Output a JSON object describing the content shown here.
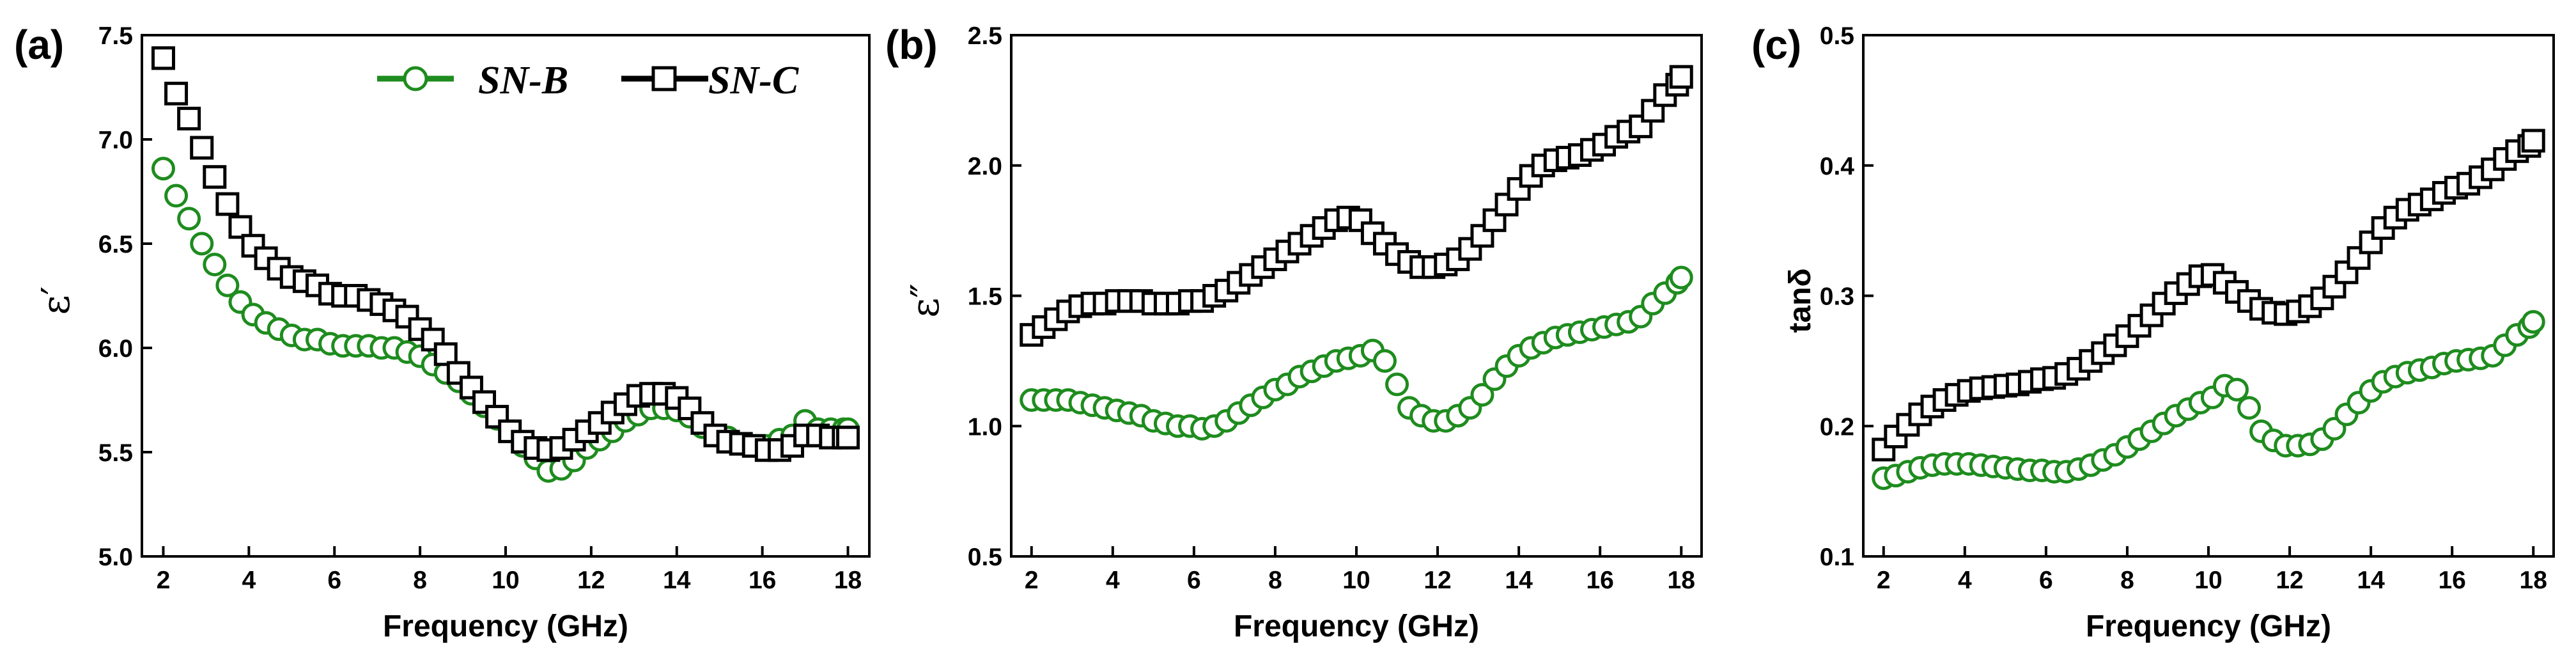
{
  "colors": {
    "sn_b": "#1e8c1e",
    "sn_c": "#000000"
  },
  "legend": {
    "sn_b": "SN-B",
    "sn_c": "SN-C"
  },
  "chart_data": [
    {
      "type": "scatter",
      "panel_label": "(a)",
      "title": "",
      "xlabel": "Frequency (GHz)",
      "ylabel": "ε′",
      "xlim": [
        1.5,
        18.5
      ],
      "ylim": [
        5.0,
        7.5
      ],
      "xticks": [
        2,
        4,
        6,
        8,
        10,
        12,
        14,
        16,
        18
      ],
      "yticks": [
        5.0,
        5.5,
        6.0,
        6.5,
        7.0,
        7.5
      ],
      "ytick_labels": [
        "5.0",
        "5.5",
        "6.0",
        "6.5",
        "7.0",
        "7.5"
      ],
      "legend_position": "top-right",
      "series": [
        {
          "name": "SN-B",
          "marker": "circle",
          "x": [
            2.0,
            2.3,
            2.6,
            2.9,
            3.2,
            3.5,
            3.8,
            4.1,
            4.4,
            4.7,
            5.0,
            5.3,
            5.6,
            5.9,
            6.2,
            6.5,
            6.8,
            7.1,
            7.4,
            7.7,
            8.0,
            8.3,
            8.6,
            8.9,
            9.2,
            9.5,
            9.8,
            10.1,
            10.4,
            10.7,
            11.0,
            11.3,
            11.6,
            11.9,
            12.2,
            12.5,
            12.8,
            13.1,
            13.4,
            13.7,
            14.0,
            14.3,
            14.6,
            14.9,
            15.2,
            15.5,
            15.8,
            16.1,
            16.4,
            16.7,
            17.0,
            17.3,
            17.6,
            17.9,
            18.0
          ],
          "y": [
            6.86,
            6.73,
            6.62,
            6.5,
            6.4,
            6.3,
            6.22,
            6.16,
            6.12,
            6.09,
            6.06,
            6.04,
            6.04,
            6.02,
            6.01,
            6.01,
            6.01,
            6.0,
            6.0,
            5.98,
            5.96,
            5.92,
            5.88,
            5.84,
            5.78,
            5.72,
            5.66,
            5.6,
            5.53,
            5.47,
            5.41,
            5.42,
            5.46,
            5.52,
            5.56,
            5.6,
            5.65,
            5.68,
            5.71,
            5.71,
            5.7,
            5.67,
            5.62,
            5.58,
            5.57,
            5.54,
            5.53,
            5.53,
            5.56,
            5.58,
            5.65,
            5.61,
            5.61,
            5.61,
            5.61
          ]
        },
        {
          "name": "SN-C",
          "marker": "square",
          "x": [
            2.0,
            2.3,
            2.6,
            2.9,
            3.2,
            3.5,
            3.8,
            4.1,
            4.4,
            4.7,
            5.0,
            5.3,
            5.6,
            5.9,
            6.2,
            6.5,
            6.8,
            7.1,
            7.4,
            7.7,
            8.0,
            8.3,
            8.6,
            8.9,
            9.2,
            9.5,
            9.8,
            10.1,
            10.4,
            10.7,
            11.0,
            11.3,
            11.6,
            11.9,
            12.2,
            12.5,
            12.8,
            13.1,
            13.4,
            13.7,
            14.0,
            14.3,
            14.6,
            14.9,
            15.2,
            15.5,
            15.8,
            16.1,
            16.4,
            16.7,
            17.0,
            17.3,
            17.6,
            17.9,
            18.0
          ],
          "y": [
            7.39,
            7.22,
            7.1,
            6.96,
            6.82,
            6.69,
            6.58,
            6.49,
            6.43,
            6.38,
            6.34,
            6.32,
            6.3,
            6.26,
            6.25,
            6.25,
            6.23,
            6.21,
            6.18,
            6.15,
            6.09,
            6.04,
            5.97,
            5.88,
            5.81,
            5.74,
            5.67,
            5.6,
            5.55,
            5.52,
            5.51,
            5.52,
            5.56,
            5.6,
            5.64,
            5.69,
            5.73,
            5.77,
            5.78,
            5.78,
            5.76,
            5.71,
            5.64,
            5.58,
            5.55,
            5.54,
            5.53,
            5.51,
            5.51,
            5.53,
            5.58,
            5.58,
            5.57,
            5.57,
            5.57
          ]
        }
      ]
    },
    {
      "type": "scatter",
      "panel_label": "(b)",
      "title": "",
      "xlabel": "Frequency (GHz)",
      "ylabel": "ε″",
      "xlim": [
        1.5,
        18.5
      ],
      "ylim": [
        0.5,
        2.5
      ],
      "xticks": [
        2,
        4,
        6,
        8,
        10,
        12,
        14,
        16,
        18
      ],
      "yticks": [
        0.5,
        1.0,
        1.5,
        2.0,
        2.5
      ],
      "ytick_labels": [
        "0.5",
        "1.0",
        "1.5",
        "2.0",
        "2.5"
      ],
      "series": [
        {
          "name": "SN-B",
          "marker": "circle",
          "x": [
            2.0,
            2.3,
            2.6,
            2.9,
            3.2,
            3.5,
            3.8,
            4.1,
            4.4,
            4.7,
            5.0,
            5.3,
            5.6,
            5.9,
            6.2,
            6.5,
            6.8,
            7.1,
            7.4,
            7.7,
            8.0,
            8.3,
            8.6,
            8.9,
            9.2,
            9.5,
            9.8,
            10.1,
            10.4,
            10.7,
            11.0,
            11.3,
            11.6,
            11.9,
            12.2,
            12.5,
            12.8,
            13.1,
            13.4,
            13.7,
            14.0,
            14.3,
            14.6,
            14.9,
            15.2,
            15.5,
            15.8,
            16.1,
            16.4,
            16.7,
            17.0,
            17.3,
            17.6,
            17.9,
            18.0
          ],
          "y": [
            1.1,
            1.1,
            1.1,
            1.1,
            1.09,
            1.08,
            1.07,
            1.06,
            1.05,
            1.04,
            1.02,
            1.01,
            1.0,
            1.0,
            0.99,
            1.0,
            1.02,
            1.05,
            1.08,
            1.11,
            1.14,
            1.16,
            1.19,
            1.21,
            1.23,
            1.25,
            1.26,
            1.27,
            1.29,
            1.25,
            1.16,
            1.07,
            1.04,
            1.02,
            1.02,
            1.04,
            1.07,
            1.12,
            1.18,
            1.23,
            1.27,
            1.3,
            1.32,
            1.34,
            1.35,
            1.36,
            1.37,
            1.38,
            1.39,
            1.4,
            1.42,
            1.47,
            1.51,
            1.55,
            1.57
          ]
        },
        {
          "name": "SN-C",
          "marker": "square",
          "x": [
            2.0,
            2.3,
            2.6,
            2.9,
            3.2,
            3.5,
            3.8,
            4.1,
            4.4,
            4.7,
            5.0,
            5.3,
            5.6,
            5.9,
            6.2,
            6.5,
            6.8,
            7.1,
            7.4,
            7.7,
            8.0,
            8.3,
            8.6,
            8.9,
            9.2,
            9.5,
            9.8,
            10.1,
            10.4,
            10.7,
            11.0,
            11.3,
            11.6,
            11.9,
            12.2,
            12.5,
            12.8,
            13.1,
            13.4,
            13.7,
            14.0,
            14.3,
            14.6,
            14.9,
            15.2,
            15.5,
            15.8,
            16.1,
            16.4,
            16.7,
            17.0,
            17.3,
            17.6,
            17.9,
            18.0
          ],
          "y": [
            1.35,
            1.38,
            1.41,
            1.44,
            1.46,
            1.47,
            1.47,
            1.48,
            1.48,
            1.48,
            1.47,
            1.47,
            1.47,
            1.48,
            1.48,
            1.5,
            1.52,
            1.55,
            1.58,
            1.61,
            1.64,
            1.67,
            1.7,
            1.73,
            1.76,
            1.79,
            1.8,
            1.79,
            1.74,
            1.7,
            1.66,
            1.63,
            1.61,
            1.61,
            1.62,
            1.64,
            1.68,
            1.73,
            1.79,
            1.85,
            1.91,
            1.96,
            2.0,
            2.02,
            2.03,
            2.04,
            2.06,
            2.08,
            2.11,
            2.13,
            2.15,
            2.21,
            2.27,
            2.31,
            2.34
          ]
        }
      ]
    },
    {
      "type": "scatter",
      "panel_label": "(c)",
      "title": "",
      "xlabel": "Frequency (GHz)",
      "ylabel": "tanδ",
      "xlim": [
        1.5,
        18.5
      ],
      "ylim": [
        0.1,
        0.5
      ],
      "xticks": [
        2,
        4,
        6,
        8,
        10,
        12,
        14,
        16,
        18
      ],
      "yticks": [
        0.1,
        0.2,
        0.3,
        0.4,
        0.5
      ],
      "ytick_labels": [
        "0.1",
        "0.2",
        "0.3",
        "0.4",
        "0.5"
      ],
      "series": [
        {
          "name": "SN-B",
          "marker": "circle",
          "x": [
            2.0,
            2.3,
            2.6,
            2.9,
            3.2,
            3.5,
            3.8,
            4.1,
            4.4,
            4.7,
            5.0,
            5.3,
            5.6,
            5.9,
            6.2,
            6.5,
            6.8,
            7.1,
            7.4,
            7.7,
            8.0,
            8.3,
            8.6,
            8.9,
            9.2,
            9.5,
            9.8,
            10.1,
            10.4,
            10.7,
            11.0,
            11.3,
            11.6,
            11.9,
            12.2,
            12.5,
            12.8,
            13.1,
            13.4,
            13.7,
            14.0,
            14.3,
            14.6,
            14.9,
            15.2,
            15.5,
            15.8,
            16.1,
            16.4,
            16.7,
            17.0,
            17.3,
            17.6,
            17.9,
            18.0
          ],
          "y": [
            0.16,
            0.162,
            0.165,
            0.168,
            0.17,
            0.171,
            0.171,
            0.171,
            0.17,
            0.169,
            0.168,
            0.167,
            0.166,
            0.166,
            0.165,
            0.165,
            0.167,
            0.17,
            0.174,
            0.178,
            0.184,
            0.19,
            0.196,
            0.202,
            0.208,
            0.213,
            0.218,
            0.222,
            0.231,
            0.228,
            0.214,
            0.196,
            0.189,
            0.185,
            0.185,
            0.186,
            0.19,
            0.198,
            0.209,
            0.218,
            0.227,
            0.234,
            0.238,
            0.241,
            0.243,
            0.245,
            0.248,
            0.25,
            0.251,
            0.252,
            0.254,
            0.262,
            0.27,
            0.276,
            0.28
          ]
        },
        {
          "name": "SN-C",
          "marker": "square",
          "x": [
            2.0,
            2.3,
            2.6,
            2.9,
            3.2,
            3.5,
            3.8,
            4.1,
            4.4,
            4.7,
            5.0,
            5.3,
            5.6,
            5.9,
            6.2,
            6.5,
            6.8,
            7.1,
            7.4,
            7.7,
            8.0,
            8.3,
            8.6,
            8.9,
            9.2,
            9.5,
            9.8,
            10.1,
            10.4,
            10.7,
            11.0,
            11.3,
            11.6,
            11.9,
            12.2,
            12.5,
            12.8,
            13.1,
            13.4,
            13.7,
            14.0,
            14.3,
            14.6,
            14.9,
            15.2,
            15.5,
            15.8,
            16.1,
            16.4,
            16.7,
            17.0,
            17.3,
            17.6,
            17.9,
            18.0
          ],
          "y": [
            0.182,
            0.192,
            0.201,
            0.209,
            0.215,
            0.22,
            0.224,
            0.227,
            0.229,
            0.23,
            0.231,
            0.232,
            0.234,
            0.236,
            0.237,
            0.24,
            0.244,
            0.25,
            0.256,
            0.262,
            0.269,
            0.277,
            0.285,
            0.294,
            0.302,
            0.309,
            0.315,
            0.316,
            0.31,
            0.303,
            0.296,
            0.29,
            0.287,
            0.286,
            0.288,
            0.292,
            0.298,
            0.307,
            0.318,
            0.329,
            0.341,
            0.352,
            0.36,
            0.366,
            0.37,
            0.374,
            0.379,
            0.383,
            0.386,
            0.391,
            0.397,
            0.405,
            0.411,
            0.415,
            0.419
          ]
        }
      ]
    }
  ]
}
